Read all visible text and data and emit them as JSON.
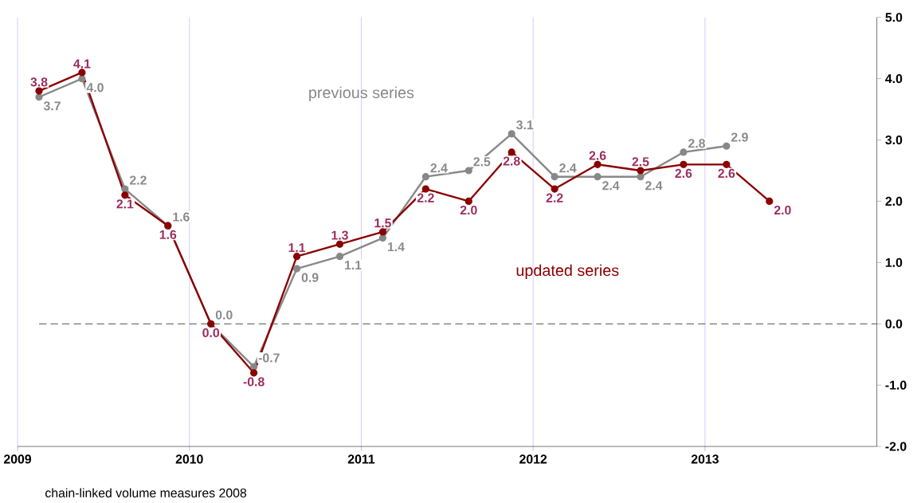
{
  "chart_data": {
    "type": "line",
    "xlim": [
      2009,
      2014
    ],
    "ylim": [
      -2.0,
      5.0
    ],
    "xticks": [
      2009,
      2010,
      2011,
      2012,
      2013
    ],
    "yticks": [
      {
        "value": -2,
        "label": "-2.0"
      },
      {
        "value": -1,
        "label": "-1.0"
      },
      {
        "value": 0,
        "label": "0.0"
      },
      {
        "value": 1,
        "label": "1.0"
      },
      {
        "value": 2,
        "label": "2.0"
      },
      {
        "value": 3,
        "label": "3.0"
      },
      {
        "value": 4,
        "label": "4.0"
      },
      {
        "value": 5,
        "label": "5.0"
      }
    ],
    "grid": "x",
    "marker": "circle",
    "line_style": "solid",
    "ref_lines": [
      {
        "axis": "y",
        "value": 0,
        "line_style": "dashed",
        "color": "#404040"
      }
    ],
    "annotations": [
      "chain-linked volume measures 2008"
    ],
    "series": [
      {
        "name": "previous series",
        "color": "#888888",
        "x": [
          2009.125,
          2009.375,
          2009.625,
          2009.875,
          2010.125,
          2010.375,
          2010.625,
          2010.875,
          2011.125,
          2011.375,
          2011.625,
          2011.875,
          2012.125,
          2012.375,
          2012.625,
          2012.875,
          2013.125
        ],
        "values": [
          3.7,
          4.0,
          2.2,
          1.6,
          0.0,
          -0.7,
          0.9,
          1.1,
          1.4,
          2.4,
          2.5,
          3.1,
          2.4,
          2.4,
          2.4,
          2.8,
          2.9
        ],
        "value_labels": [
          "3.7",
          "4.0",
          "2.2",
          "1.6",
          "0.0",
          "-0.7",
          "0.9",
          "1.1",
          "1.4",
          "2.4",
          "2.5",
          "3.1",
          "2.4",
          "2.4",
          "2.4",
          "2.8",
          "2.9"
        ]
      },
      {
        "name": "updated series",
        "color": "#8b0000",
        "x": [
          2009.125,
          2009.375,
          2009.625,
          2009.875,
          2010.125,
          2010.375,
          2010.625,
          2010.875,
          2011.125,
          2011.375,
          2011.625,
          2011.875,
          2012.125,
          2012.375,
          2012.625,
          2012.875,
          2013.125,
          2013.375
        ],
        "values": [
          3.8,
          4.1,
          2.1,
          1.6,
          0.0,
          -0.8,
          1.1,
          1.3,
          1.5,
          2.2,
          2.0,
          2.8,
          2.2,
          2.6,
          2.5,
          2.6,
          2.6,
          2.0
        ],
        "value_labels": [
          "3.8",
          "4.1",
          "2.1",
          "1.6",
          "0.0",
          "-0.8",
          "1.1",
          "1.3",
          "1.5",
          "2.2",
          "2.0",
          "2.8",
          "2.2",
          "2.6",
          "2.5",
          "2.6",
          "2.6",
          "2.0"
        ]
      }
    ]
  }
}
